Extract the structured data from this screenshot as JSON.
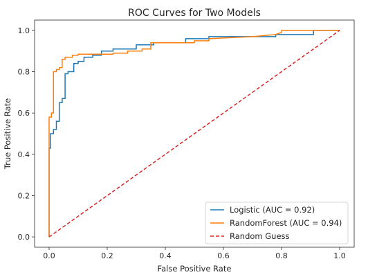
{
  "chart_data": {
    "type": "line",
    "title": "ROC Curves for Two Models",
    "xlabel": "False Positive Rate",
    "ylabel": "True Positive Rate",
    "xlim": [
      -0.05,
      1.05
    ],
    "ylim": [
      -0.05,
      1.05
    ],
    "xticks": [
      "0.0",
      "0.2",
      "0.4",
      "0.6",
      "0.8",
      "1.0"
    ],
    "yticks": [
      "0.0",
      "0.2",
      "0.4",
      "0.6",
      "0.8",
      "1.0"
    ],
    "legend_position": "bottom-right",
    "series": [
      {
        "name": "Logistic (AUC = 0.92)",
        "color": "#1f77b4",
        "style": "solid",
        "x": [
          0.0,
          0.0,
          0.005,
          0.005,
          0.015,
          0.015,
          0.025,
          0.025,
          0.035,
          0.035,
          0.045,
          0.045,
          0.055,
          0.055,
          0.065,
          0.065,
          0.085,
          0.085,
          0.1,
          0.1,
          0.12,
          0.12,
          0.15,
          0.15,
          0.18,
          0.18,
          0.22,
          0.22,
          0.3,
          0.3,
          0.36,
          0.36,
          0.47,
          0.47,
          0.55,
          0.55,
          0.78,
          0.78,
          0.91,
          0.91,
          1.0
        ],
        "y": [
          0.0,
          0.43,
          0.43,
          0.5,
          0.5,
          0.52,
          0.52,
          0.56,
          0.56,
          0.65,
          0.65,
          0.67,
          0.67,
          0.79,
          0.79,
          0.8,
          0.8,
          0.84,
          0.84,
          0.85,
          0.85,
          0.87,
          0.87,
          0.88,
          0.88,
          0.9,
          0.9,
          0.91,
          0.91,
          0.93,
          0.93,
          0.94,
          0.94,
          0.96,
          0.96,
          0.97,
          0.97,
          0.98,
          0.98,
          1.0,
          1.0
        ]
      },
      {
        "name": "RandomForest (AUC = 0.94)",
        "color": "#ff7f0e",
        "style": "solid",
        "x": [
          0.0,
          0.0,
          0.008,
          0.008,
          0.015,
          0.015,
          0.025,
          0.025,
          0.035,
          0.035,
          0.045,
          0.045,
          0.055,
          0.055,
          0.08,
          0.08,
          0.1,
          0.1,
          0.22,
          0.22,
          0.27,
          0.27,
          0.32,
          0.32,
          0.35,
          0.35,
          0.5,
          0.5,
          0.55,
          0.55,
          0.7,
          0.78,
          0.8,
          0.8,
          1.0
        ],
        "y": [
          0.0,
          0.58,
          0.58,
          0.6,
          0.6,
          0.8,
          0.8,
          0.81,
          0.81,
          0.82,
          0.82,
          0.86,
          0.86,
          0.87,
          0.87,
          0.88,
          0.88,
          0.885,
          0.885,
          0.89,
          0.89,
          0.9,
          0.9,
          0.91,
          0.91,
          0.94,
          0.94,
          0.95,
          0.95,
          0.96,
          0.97,
          0.98,
          0.99,
          1.0,
          1.0
        ]
      },
      {
        "name": "Random Guess",
        "color": "#d62728",
        "style": "dashed",
        "x": [
          0,
          1
        ],
        "y": [
          0,
          1
        ]
      }
    ]
  }
}
